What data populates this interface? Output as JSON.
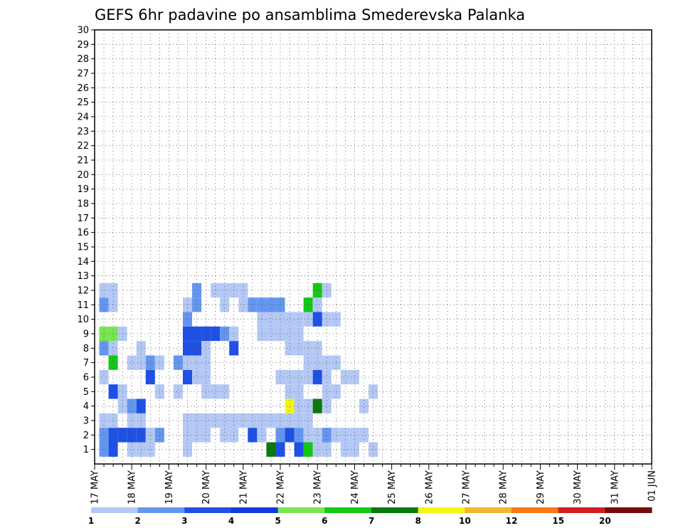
{
  "chart_data": {
    "type": "heatmap",
    "title": "GEFS 6hr padavine po ansamblima Smederevska Palanka",
    "x_tick_labels": [
      "17 MAY",
      "18 MAY",
      "19 MAY",
      "20 MAY",
      "21 MAY",
      "22 MAY",
      "23 MAY",
      "24 MAY",
      "25 MAY",
      "26 MAY",
      "27 MAY",
      "28 MAY",
      "29 MAY",
      "30 MAY",
      "31 MAY",
      "01 JUN"
    ],
    "y_tick_labels": [
      "1",
      "2",
      "3",
      "4",
      "5",
      "6",
      "7",
      "8",
      "9",
      "10",
      "11",
      "12",
      "13",
      "14",
      "15",
      "16",
      "17",
      "18",
      "19",
      "20",
      "21",
      "22",
      "23",
      "24",
      "25",
      "26",
      "27",
      "28",
      "29",
      "30"
    ],
    "ylim": [
      0,
      30
    ],
    "time_steps_per_day": 4,
    "num_time_steps": 61,
    "grid": true,
    "colorbar": {
      "levels": [
        "1",
        "2",
        "3",
        "4",
        "5",
        "6",
        "7",
        "8",
        "10",
        "12",
        "15",
        "20"
      ],
      "colors": [
        "#b4c8f5",
        "#6496f0",
        "#1e50e6",
        "#1438dc",
        "#78e650",
        "#14c814",
        "#0a780a",
        "#f5f514",
        "#f5b432",
        "#f57814",
        "#d21e1e",
        "#780a0a"
      ]
    },
    "cells": [
      [
        1,
        1,
        2
      ],
      [
        1,
        2,
        3
      ],
      [
        1,
        4,
        1
      ],
      [
        1,
        5,
        1
      ],
      [
        1,
        6,
        1
      ],
      [
        1,
        10,
        1
      ],
      [
        1,
        19,
        7
      ],
      [
        1,
        20,
        3
      ],
      [
        1,
        22,
        3
      ],
      [
        1,
        23,
        6
      ],
      [
        1,
        24,
        1
      ],
      [
        1,
        25,
        1
      ],
      [
        1,
        27,
        1
      ],
      [
        1,
        28,
        1
      ],
      [
        1,
        30,
        1
      ],
      [
        2,
        1,
        2
      ],
      [
        2,
        2,
        3
      ],
      [
        2,
        3,
        3
      ],
      [
        2,
        4,
        3
      ],
      [
        2,
        5,
        3
      ],
      [
        2,
        6,
        1
      ],
      [
        2,
        7,
        2
      ],
      [
        2,
        10,
        1
      ],
      [
        2,
        11,
        1
      ],
      [
        2,
        12,
        1
      ],
      [
        2,
        14,
        1
      ],
      [
        2,
        15,
        1
      ],
      [
        2,
        17,
        3
      ],
      [
        2,
        18,
        1
      ],
      [
        2,
        20,
        2
      ],
      [
        2,
        21,
        3
      ],
      [
        2,
        22,
        2
      ],
      [
        2,
        23,
        1
      ],
      [
        2,
        24,
        1
      ],
      [
        2,
        25,
        2
      ],
      [
        2,
        26,
        1
      ],
      [
        2,
        27,
        1
      ],
      [
        2,
        28,
        1
      ],
      [
        2,
        29,
        1
      ],
      [
        3,
        1,
        1
      ],
      [
        3,
        2,
        1
      ],
      [
        3,
        4,
        1
      ],
      [
        3,
        5,
        1
      ],
      [
        3,
        10,
        1
      ],
      [
        3,
        11,
        1
      ],
      [
        3,
        12,
        1
      ],
      [
        3,
        13,
        1
      ],
      [
        3,
        14,
        1
      ],
      [
        3,
        15,
        1
      ],
      [
        3,
        16,
        1
      ],
      [
        3,
        17,
        1
      ],
      [
        3,
        18,
        1
      ],
      [
        3,
        19,
        1
      ],
      [
        3,
        20,
        1
      ],
      [
        3,
        21,
        1
      ],
      [
        3,
        22,
        1
      ],
      [
        3,
        23,
        1
      ],
      [
        4,
        3,
        1
      ],
      [
        4,
        4,
        2
      ],
      [
        4,
        5,
        3
      ],
      [
        4,
        21,
        8
      ],
      [
        4,
        22,
        1
      ],
      [
        4,
        23,
        1
      ],
      [
        4,
        24,
        7
      ],
      [
        4,
        25,
        1
      ],
      [
        4,
        29,
        1
      ],
      [
        5,
        2,
        3
      ],
      [
        5,
        3,
        1
      ],
      [
        5,
        7,
        1
      ],
      [
        5,
        9,
        1
      ],
      [
        5,
        12,
        1
      ],
      [
        5,
        13,
        1
      ],
      [
        5,
        14,
        1
      ],
      [
        5,
        21,
        1
      ],
      [
        5,
        22,
        1
      ],
      [
        5,
        25,
        1
      ],
      [
        5,
        26,
        1
      ],
      [
        5,
        30,
        1
      ],
      [
        6,
        1,
        1
      ],
      [
        6,
        6,
        3
      ],
      [
        6,
        10,
        3
      ],
      [
        6,
        11,
        1
      ],
      [
        6,
        12,
        1
      ],
      [
        6,
        20,
        1
      ],
      [
        6,
        21,
        1
      ],
      [
        6,
        22,
        1
      ],
      [
        6,
        23,
        1
      ],
      [
        6,
        24,
        3
      ],
      [
        6,
        25,
        1
      ],
      [
        6,
        27,
        1
      ],
      [
        6,
        28,
        1
      ],
      [
        7,
        2,
        6
      ],
      [
        7,
        4,
        1
      ],
      [
        7,
        5,
        1
      ],
      [
        7,
        6,
        2
      ],
      [
        7,
        7,
        1
      ],
      [
        7,
        9,
        2
      ],
      [
        7,
        10,
        1
      ],
      [
        7,
        11,
        1
      ],
      [
        7,
        12,
        1
      ],
      [
        7,
        23,
        1
      ],
      [
        7,
        24,
        1
      ],
      [
        7,
        25,
        1
      ],
      [
        7,
        26,
        1
      ],
      [
        8,
        1,
        2
      ],
      [
        8,
        2,
        1
      ],
      [
        8,
        5,
        1
      ],
      [
        8,
        10,
        3
      ],
      [
        8,
        11,
        3
      ],
      [
        8,
        12,
        1
      ],
      [
        8,
        15,
        3
      ],
      [
        8,
        21,
        1
      ],
      [
        8,
        22,
        1
      ],
      [
        8,
        23,
        1
      ],
      [
        8,
        24,
        1
      ],
      [
        9,
        1,
        5
      ],
      [
        9,
        2,
        5
      ],
      [
        9,
        3,
        1
      ],
      [
        9,
        10,
        3
      ],
      [
        9,
        11,
        3
      ],
      [
        9,
        12,
        3
      ],
      [
        9,
        13,
        3
      ],
      [
        9,
        14,
        2
      ],
      [
        9,
        15,
        1
      ],
      [
        9,
        18,
        1
      ],
      [
        9,
        19,
        1
      ],
      [
        9,
        20,
        1
      ],
      [
        9,
        21,
        1
      ],
      [
        9,
        22,
        1
      ],
      [
        10,
        10,
        2
      ],
      [
        10,
        18,
        1
      ],
      [
        10,
        19,
        1
      ],
      [
        10,
        20,
        1
      ],
      [
        10,
        21,
        1
      ],
      [
        10,
        22,
        1
      ],
      [
        10,
        23,
        1
      ],
      [
        10,
        24,
        3
      ],
      [
        10,
        25,
        1
      ],
      [
        10,
        26,
        1
      ],
      [
        11,
        1,
        2
      ],
      [
        11,
        2,
        1
      ],
      [
        11,
        10,
        1
      ],
      [
        11,
        11,
        2
      ],
      [
        11,
        14,
        1
      ],
      [
        11,
        16,
        1
      ],
      [
        11,
        17,
        2
      ],
      [
        11,
        18,
        2
      ],
      [
        11,
        19,
        2
      ],
      [
        11,
        20,
        2
      ],
      [
        11,
        23,
        6
      ],
      [
        11,
        24,
        1
      ],
      [
        12,
        1,
        1
      ],
      [
        12,
        2,
        1
      ],
      [
        12,
        11,
        2
      ],
      [
        12,
        13,
        1
      ],
      [
        12,
        14,
        1
      ],
      [
        12,
        15,
        1
      ],
      [
        12,
        16,
        1
      ],
      [
        12,
        24,
        6
      ],
      [
        12,
        25,
        1
      ]
    ]
  }
}
